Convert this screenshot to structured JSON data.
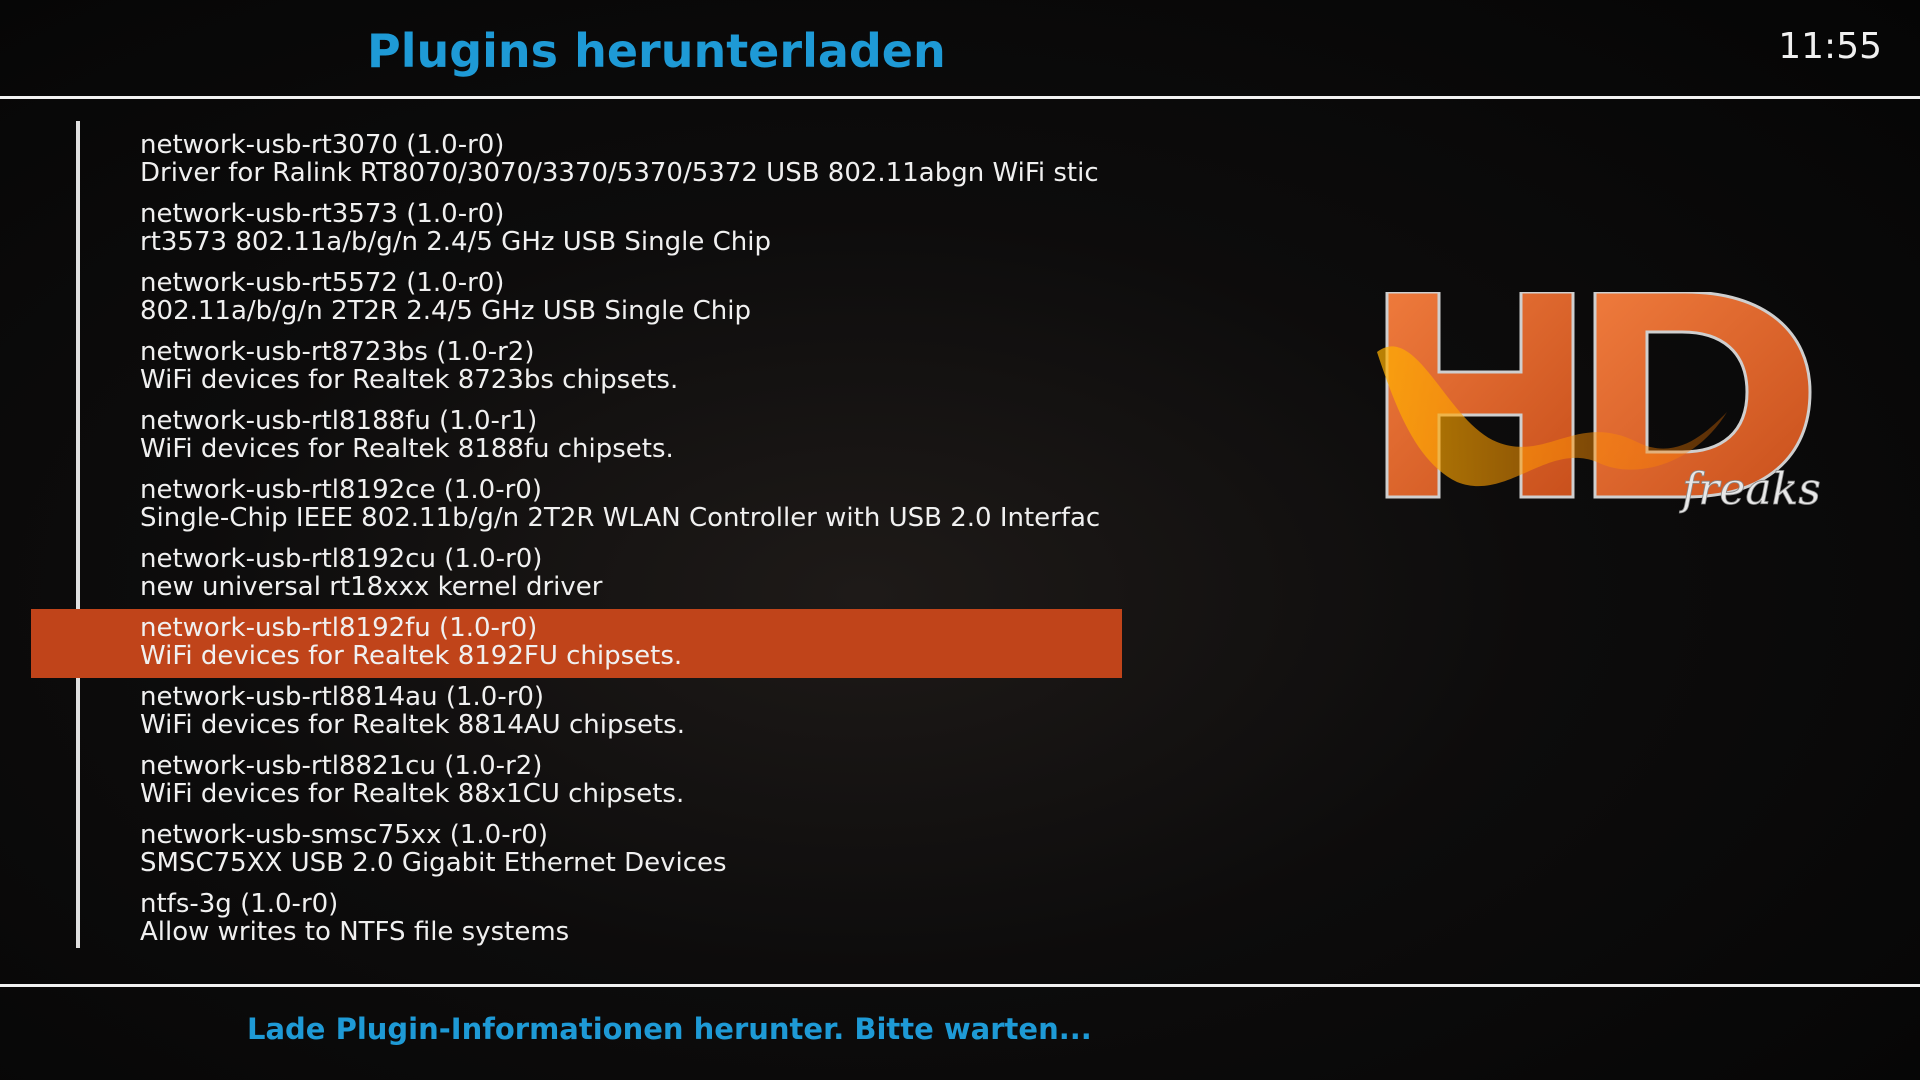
{
  "colors": {
    "accent": "#1e9ad6",
    "selection": "#c0441a",
    "logo_orange": "#e2622a"
  },
  "header": {
    "title": "Plugins herunterladen",
    "clock": "11:55"
  },
  "logo": {
    "text": "HD",
    "script": "freaks"
  },
  "list": {
    "selected_index": 7,
    "items": [
      {
        "name": "network-usb-rt3070  (1.0-r0)",
        "desc": "Driver for Ralink RT8070/3070/3370/5370/5372 USB 802.11abgn WiFi stic"
      },
      {
        "name": "network-usb-rt3573  (1.0-r0)",
        "desc": "rt3573 802.11a/b/g/n 2.4/5 GHz USB Single Chip"
      },
      {
        "name": "network-usb-rt5572  (1.0-r0)",
        "desc": "802.11a/b/g/n 2T2R 2.4/5 GHz USB Single Chip"
      },
      {
        "name": "network-usb-rt8723bs  (1.0-r2)",
        "desc": "WiFi devices for Realtek 8723bs chipsets."
      },
      {
        "name": "network-usb-rtl8188fu  (1.0-r1)",
        "desc": "WiFi devices for Realtek 8188fu chipsets."
      },
      {
        "name": "network-usb-rtl8192ce  (1.0-r0)",
        "desc": "Single-Chip IEEE 802.11b/g/n 2T2R WLAN Controller with USB 2.0 Interfac"
      },
      {
        "name": "network-usb-rtl8192cu  (1.0-r0)",
        "desc": "new universal rt18xxx kernel driver"
      },
      {
        "name": "network-usb-rtl8192fu  (1.0-r0)",
        "desc": "WiFi devices for Realtek 8192FU chipsets."
      },
      {
        "name": "network-usb-rtl8814au  (1.0-r0)",
        "desc": "WiFi devices for Realtek 8814AU chipsets."
      },
      {
        "name": "network-usb-rtl8821cu  (1.0-r2)",
        "desc": "WiFi devices for Realtek 88x1CU chipsets."
      },
      {
        "name": "network-usb-smsc75xx  (1.0-r0)",
        "desc": "SMSC75XX USB 2.0 Gigabit Ethernet Devices"
      },
      {
        "name": "ntfs-3g  (1.0-r0)",
        "desc": "Allow writes to NTFS file systems"
      }
    ]
  },
  "status": {
    "text": "Lade Plugin-Informationen herunter. Bitte warten..."
  }
}
